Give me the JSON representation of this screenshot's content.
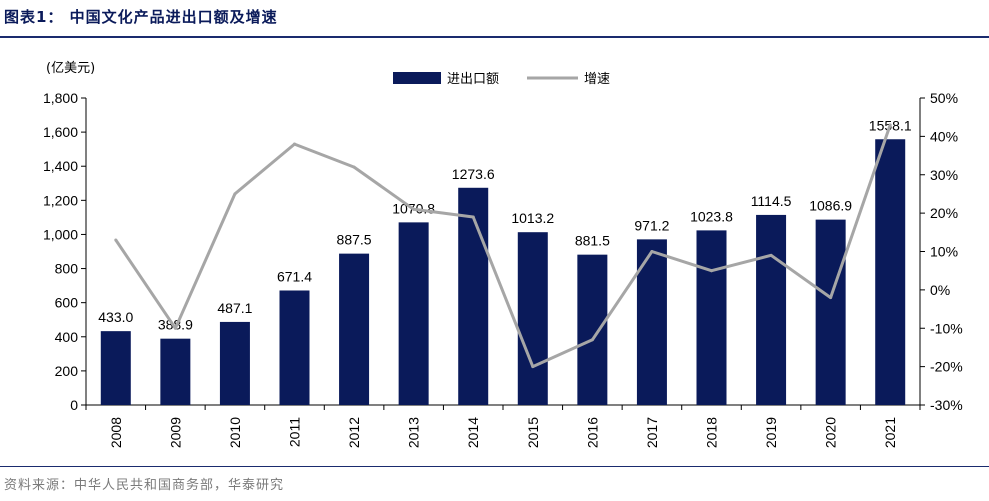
{
  "figure": {
    "title": "图表1： 中国文化产品进出口额及增速",
    "source": "资料来源：中华人民共和国商务部，华泰研究"
  },
  "chart_data": {
    "type": "bar",
    "categories": [
      "2008",
      "2009",
      "2010",
      "2011",
      "2012",
      "2013",
      "2014",
      "2015",
      "2016",
      "2017",
      "2018",
      "2019",
      "2020",
      "2021"
    ],
    "series": [
      {
        "name": "进出口额",
        "kind": "bar",
        "axis": "left",
        "color": "#0a1a5a",
        "values": [
          433.0,
          388.9,
          487.1,
          671.4,
          887.5,
          1070.8,
          1273.6,
          1013.2,
          881.5,
          971.2,
          1023.8,
          1114.5,
          1086.9,
          1558.1
        ],
        "labels": [
          "433.0",
          "388.9",
          "487.1",
          "671.4",
          "887.5",
          "1070.8",
          "1273.6",
          "1013.2",
          "881.5",
          "971.2",
          "1023.8",
          "1114.5",
          "1086.9",
          "1558.1"
        ]
      },
      {
        "name": "增速",
        "kind": "line",
        "axis": "right",
        "color": "#a6a6a6",
        "values": [
          0.13,
          -0.1,
          0.25,
          0.38,
          0.32,
          0.21,
          0.19,
          -0.2,
          -0.13,
          0.1,
          0.05,
          0.09,
          -0.02,
          0.43
        ]
      }
    ],
    "ylabel_unit": "(亿美元)",
    "ylim_left": [
      0,
      1800
    ],
    "yticks_left": [
      "0",
      "200",
      "400",
      "600",
      "800",
      "1,000",
      "1,200",
      "1,400",
      "1,600",
      "1,800"
    ],
    "ylim_right": [
      -0.3,
      0.5
    ],
    "yticks_right": [
      "-30%",
      "-20%",
      "-10%",
      "0%",
      "10%",
      "20%",
      "30%",
      "40%",
      "50%"
    ],
    "legend_position": "top-center",
    "grid": false
  }
}
